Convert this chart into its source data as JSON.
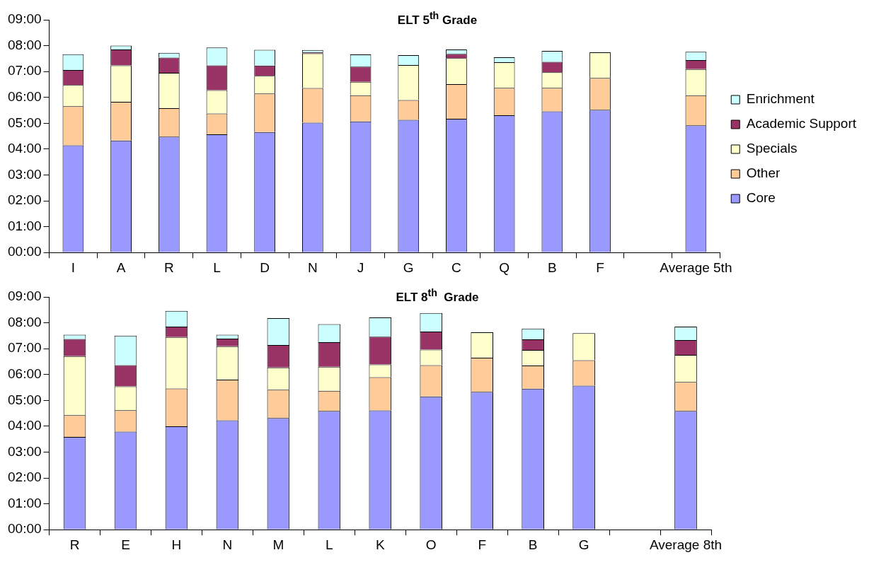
{
  "chart_data": [
    {
      "type": "bar",
      "title": "ELT 5$^{th}$ Grade",
      "stacked": true,
      "legend": "right",
      "grid": false,
      "categories": [
        "I",
        "A",
        "R",
        "L",
        "D",
        "N",
        "J",
        "G",
        "C",
        "Q",
        "B",
        "F",
        null,
        "Average 5th"
      ],
      "ylim": [
        0,
        9
      ],
      "yticks": [
        {
          "value": 0,
          "label": "00:00"
        },
        {
          "value": 1,
          "label": "01:00"
        },
        {
          "value": 2,
          "label": "02:00"
        },
        {
          "value": 3,
          "label": "03:00"
        },
        {
          "value": 4,
          "label": "04:00"
        },
        {
          "value": 5,
          "label": "05:00"
        },
        {
          "value": 6,
          "label": "06:00"
        },
        {
          "value": 7,
          "label": "07:00"
        },
        {
          "value": 8,
          "label": "08:00"
        },
        {
          "value": 9,
          "label": "09:00"
        }
      ],
      "series": [
        {
          "name": "Core",
          "color": "#9999ff",
          "values": [
            4.15,
            4.33,
            4.48,
            4.57,
            4.66,
            5.02,
            5.07,
            5.13,
            5.17,
            5.31,
            5.46,
            5.52,
            null,
            4.92
          ]
        },
        {
          "name": "Other",
          "color": "#ffcc99",
          "values": [
            1.51,
            1.5,
            1.1,
            0.81,
            1.49,
            1.34,
            1.01,
            0.77,
            1.34,
            1.06,
            0.91,
            1.23,
            null,
            1.16
          ]
        },
        {
          "name": "Specials",
          "color": "#ffffcc",
          "values": [
            0.82,
            1.41,
            1.37,
            0.9,
            0.68,
            1.34,
            0.52,
            1.35,
            1.01,
            0.99,
            0.6,
            0.99,
            null,
            1.01
          ]
        },
        {
          "name": "Academic Support",
          "color": "#993366",
          "values": [
            0.58,
            0.61,
            0.59,
            0.96,
            0.4,
            0.05,
            0.59,
            0,
            0.16,
            0,
            0.4,
            0,
            null,
            0.35
          ]
        },
        {
          "name": "Enrichment",
          "color": "#ccffff",
          "values": [
            0.61,
            0.15,
            0.18,
            0.69,
            0.61,
            0.08,
            0.47,
            0.38,
            0.17,
            0.19,
            0.43,
            0,
            null,
            0.32
          ]
        }
      ]
    },
    {
      "type": "bar",
      "title": "ELT 8$^{th}$  Grade",
      "stacked": true,
      "legend": false,
      "grid": false,
      "categories": [
        "R",
        "E",
        "H",
        "N",
        "M",
        "L",
        "K",
        "O",
        "F",
        "B",
        "G",
        null,
        "Average 8th"
      ],
      "ylim": [
        0,
        9
      ],
      "yticks": [
        {
          "value": 0,
          "label": "00:00"
        },
        {
          "value": 1,
          "label": "01:00"
        },
        {
          "value": 2,
          "label": "02:00"
        },
        {
          "value": 3,
          "label": "03:00"
        },
        {
          "value": 4,
          "label": "04:00"
        },
        {
          "value": 5,
          "label": "05:00"
        },
        {
          "value": 6,
          "label": "06:00"
        },
        {
          "value": 7,
          "label": "07:00"
        },
        {
          "value": 8,
          "label": "08:00"
        },
        {
          "value": 9,
          "label": "09:00"
        }
      ],
      "series": [
        {
          "color": "#9999ff",
          "values": [
            3.59,
            3.79,
            4.0,
            4.23,
            4.32,
            4.59,
            4.61,
            5.15,
            5.33,
            5.45,
            5.57,
            null,
            4.59
          ]
        },
        {
          "color": "#ffcc99",
          "values": [
            0.84,
            0.83,
            1.46,
            1.57,
            1.09,
            0.78,
            1.29,
            1.21,
            1.32,
            0.9,
            0.98,
            null,
            1.12
          ]
        },
        {
          "color": "#ffffcc",
          "values": [
            2.28,
            0.92,
            1.99,
            1.29,
            0.86,
            0.93,
            0.49,
            0.6,
            0.98,
            0.6,
            1.05,
            null,
            1.05
          ]
        },
        {
          "color": "#993366",
          "values": [
            0.66,
            0.82,
            0.4,
            0.3,
            0.87,
            0.95,
            1.07,
            0.7,
            0,
            0.41,
            0,
            null,
            0.57
          ]
        },
        {
          "color": "#ccffff",
          "values": [
            0.17,
            1.14,
            0.61,
            0.15,
            1.04,
            0.7,
            0.75,
            0.72,
            0,
            0.42,
            0,
            null,
            0.52
          ]
        }
      ]
    }
  ]
}
